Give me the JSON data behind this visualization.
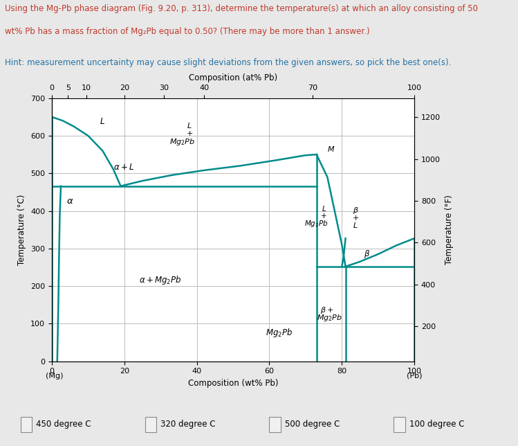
{
  "title_line1": "Using the Mg-Pb phase diagram (Fig. 9.20, p. 313), determine the temperature(s) at which an alloy consisting of 50",
  "title_line2": "wt% Pb has a mass fraction of Mg₂Pb equal to 0.50? (There may be more than 1 answer.)",
  "hint_text": "Hint: measurement uncertainty may cause slight deviations from the given answers, so pick the best one(s).",
  "question_color": "#c0392b",
  "hint_color": "#2471a3",
  "bg_color": "#e8e8e8",
  "plot_bg_color": "#ffffff",
  "line_color": "#008B8B",
  "grid_color": "#bbbbbb",
  "answer_options": [
    "450 degree C",
    "320 degree C",
    "500 degree C",
    "100 degree C"
  ],
  "xlabel": "Composition (wt% Pb)",
  "ylabel_left": "Temperature (°C)",
  "ylabel_right": "Temperature (°F)",
  "xlabel_top": "Composition (at% Pb)",
  "note_mg": "(Mg)",
  "note_pb": "(Pb)",
  "at_pct_tick_labels": [
    "0",
    "5",
    "10",
    "20",
    "30",
    "40",
    "70",
    "100"
  ],
  "at_pct_tick_wt_pos": [
    0,
    4.5,
    9.5,
    20,
    31,
    42,
    72,
    100
  ]
}
